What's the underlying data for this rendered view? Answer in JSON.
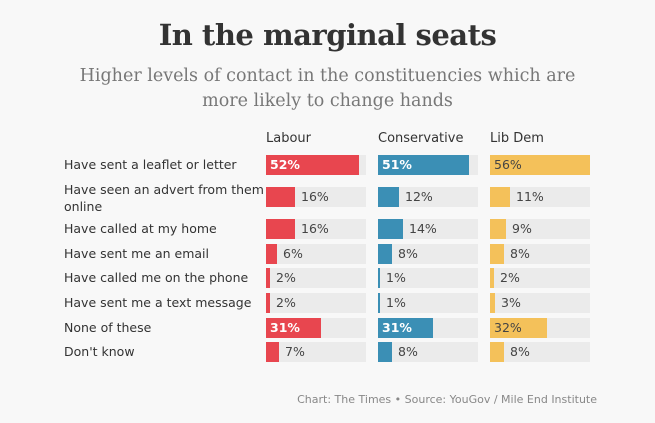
{
  "title": "In the marginal seats",
  "subtitle": "Higher levels of contact in the constituencies which are more likely to change hands",
  "source": "Chart: The Times • Source: YouGov / Mile End Institute",
  "chart_data": {
    "type": "bar",
    "orientation": "horizontal",
    "title": "In the marginal seats",
    "subtitle": "Higher levels of contact in the constituencies which are more likely to change hands",
    "xlim": [
      0,
      56
    ],
    "unit": "%",
    "categories": [
      "Have sent a leaflet or letter",
      "Have seen an advert from them online",
      "Have called at my home",
      "Have sent me an email",
      "Have called me on the phone",
      "Have sent me a text message",
      "None of these",
      "Don't know"
    ],
    "series": [
      {
        "name": "Labour",
        "color": "#e8464f",
        "values": [
          52,
          16,
          16,
          6,
          2,
          2,
          31,
          7
        ]
      },
      {
        "name": "Conservative",
        "color": "#3b8fb5",
        "values": [
          51,
          12,
          14,
          8,
          1,
          1,
          31,
          8
        ]
      },
      {
        "name": "Lib Dem",
        "color": "#f4c15a",
        "values": [
          56,
          11,
          9,
          8,
          2,
          3,
          32,
          8
        ]
      }
    ],
    "source": "Chart: The Times • Source: YouGov / Mile End Institute"
  }
}
